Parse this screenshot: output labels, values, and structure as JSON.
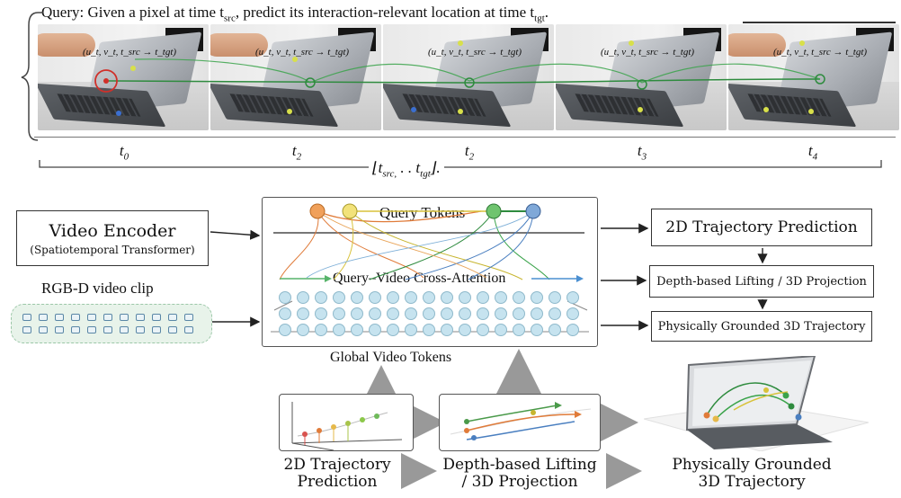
{
  "query": {
    "text_prefix": "Query: Given a pixel at time t",
    "sub_src": "src",
    "text_mid": ", predict its interaction-relevant location at time t",
    "sub_tgt": "tgt",
    "text_end": "."
  },
  "frames": [
    {
      "overlay": "(u_t, v_t, t_src → t_tgt)",
      "time_label": "t_0",
      "time_label_text": "t",
      "time_label_sub": "0"
    },
    {
      "overlay": "(u_t, v_t, t_src → t_tgt)",
      "time_label": "t_2",
      "time_label_text": "t",
      "time_label_sub": "2"
    },
    {
      "overlay": "(u_t, v_t, t_src → t_tgt)",
      "time_label": "t_2",
      "time_label_text": "t",
      "time_label_sub": "2"
    },
    {
      "overlay": "(u_t, v_t, t_src → t_tgt)",
      "time_label": "t_3",
      "time_label_text": "t",
      "time_label_sub": "3"
    },
    {
      "overlay": "(u_t, v_t, t_src → t_tgt)",
      "time_label": "t_4",
      "time_label_text": "t",
      "time_label_sub": "4"
    }
  ],
  "range_label": {
    "open": "⌊t",
    "sub1": "src,",
    "mid": " . . t",
    "sub2": "tgt",
    "close": "⌋."
  },
  "encoder": {
    "title": "Video Encoder",
    "subtitle": "(Spatiotemporal Transformer)"
  },
  "clip_label": "RGB-D video clip",
  "central": {
    "query_tokens": "Query Tokens",
    "cross_attention": "Query–Video Cross-Attention",
    "global_tokens": "Global Video Tokens"
  },
  "right_pipeline": [
    "2D Trajectory Prediction",
    "Depth-based Lifting / 3D Projection",
    "Physically Grounded 3D Trajectory"
  ],
  "bottom": {
    "c1_line1": "2D Trajectory",
    "c1_line2": "Prediction",
    "c2_line1": "Depth-based Lifting",
    "c2_line2": "/ 3D Projection",
    "c3_line1": "Physically Grounded",
    "c3_line2": "3D Trajectory"
  },
  "colors": {
    "track_green": "#2e8b3e",
    "query_red": "#d0302a",
    "token_blue": "#c6e3ef"
  }
}
